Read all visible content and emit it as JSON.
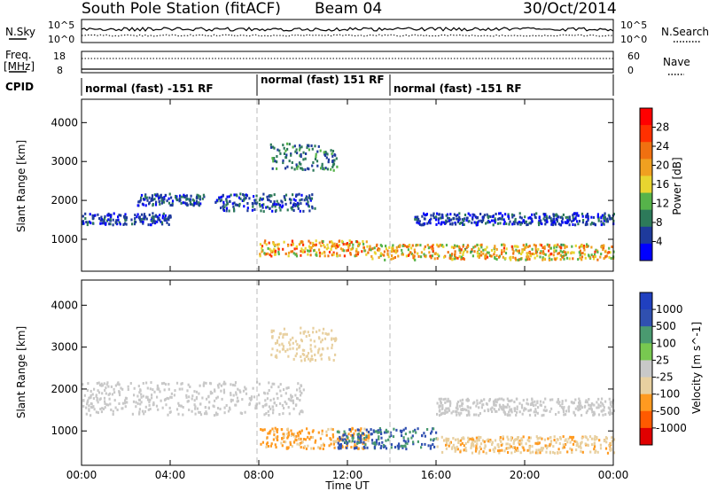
{
  "header": {
    "station": "South Pole Station (fitACF)",
    "beam": "Beam 04",
    "date": "30/Oct/2014"
  },
  "top_panel": {
    "left_label": "N.Sky",
    "left_ticks": [
      "10^5",
      "10^0"
    ],
    "right_label": "N.Search",
    "right_ticks": [
      "10^5",
      "10^0"
    ]
  },
  "freq_panel": {
    "left_label_line1": "Freq.",
    "left_label_line2": "[MHz]",
    "left_ticks": [
      "18",
      "8"
    ],
    "right_label": "Nave",
    "right_ticks": [
      "60",
      "0"
    ]
  },
  "cpid": {
    "label": "CPID",
    "segments": [
      "normal (fast) -151 RF",
      "normal (fast) 151 RF",
      "normal (fast) -151 RF"
    ]
  },
  "colors": {
    "power_scale": [
      "#0000ff",
      "#1e3a9c",
      "#2d7a5a",
      "#56b34a",
      "#e8d530",
      "#f0a020",
      "#f07010",
      "#ff3000",
      "#ff0000"
    ],
    "velocity_scale": [
      "#e00000",
      "#ff5a00",
      "#ff9a20",
      "#e8d0a0",
      "#c8c8c8",
      "#78c850",
      "#4a9a70",
      "#3050b0",
      "#2040c0"
    ]
  },
  "chart_data": [
    {
      "type": "heatmap",
      "title": "Power",
      "xlabel": "",
      "ylabel": "Slant Range [km]",
      "x_ticks": [
        "00:00",
        "04:00",
        "08:00",
        "12:00",
        "16:00",
        "20:00",
        "00:00"
      ],
      "y_ticks": [
        "1000",
        "2000",
        "3000",
        "4000"
      ],
      "ylim": [
        180,
        4600
      ],
      "colorbar": {
        "label": "Power [dB]",
        "ticks": [
          "4",
          "8",
          "12",
          "16",
          "20",
          "24",
          "28"
        ],
        "range": [
          0,
          32
        ]
      },
      "scatter_bands": [
        {
          "hours": [
            0,
            4
          ],
          "range_km": [
            1400,
            1700
          ],
          "value": 5
        },
        {
          "hours": [
            2.5,
            5.5
          ],
          "range_km": [
            1900,
            2200
          ],
          "value": 6
        },
        {
          "hours": [
            6,
            10.5
          ],
          "range_km": [
            1750,
            2200
          ],
          "value": 6
        },
        {
          "hours": [
            8,
            13
          ],
          "range_km": [
            600,
            1000
          ],
          "value": 20
        },
        {
          "hours": [
            13,
            24
          ],
          "range_km": [
            500,
            900
          ],
          "value": 18
        },
        {
          "hours": [
            15,
            24
          ],
          "range_km": [
            1400,
            1700
          ],
          "value": 5
        },
        {
          "hours": [
            8.5,
            11.5
          ],
          "range_km": [
            2800,
            3500
          ],
          "value": 8
        }
      ]
    },
    {
      "type": "heatmap",
      "title": "Velocity",
      "xlabel": "Time UT",
      "ylabel": "Slant Range [km]",
      "x_ticks": [
        "00:00",
        "04:00",
        "08:00",
        "12:00",
        "16:00",
        "20:00",
        "00:00"
      ],
      "y_ticks": [
        "1000",
        "2000",
        "3000",
        "4000"
      ],
      "ylim": [
        180,
        4600
      ],
      "colorbar": {
        "label": "Velocity [m s^-1]",
        "ticks": [
          "1000",
          "500",
          "100",
          "25",
          "-25",
          "-100",
          "-500",
          "-1000"
        ],
        "range": [
          -1000,
          1000
        ]
      },
      "scatter_bands": [
        {
          "hours": [
            0,
            10
          ],
          "range_km": [
            1400,
            2200
          ],
          "value": 0
        },
        {
          "hours": [
            8,
            13
          ],
          "range_km": [
            600,
            1100
          ],
          "value": -400
        },
        {
          "hours": [
            11.5,
            16
          ],
          "range_km": [
            600,
            1100
          ],
          "value": 600
        },
        {
          "hours": [
            16,
            24
          ],
          "range_km": [
            500,
            900
          ],
          "value": -300
        },
        {
          "hours": [
            16,
            24
          ],
          "range_km": [
            1400,
            1800
          ],
          "value": 0
        },
        {
          "hours": [
            8.5,
            11.5
          ],
          "range_km": [
            2700,
            3500
          ],
          "value": -200
        }
      ]
    }
  ]
}
